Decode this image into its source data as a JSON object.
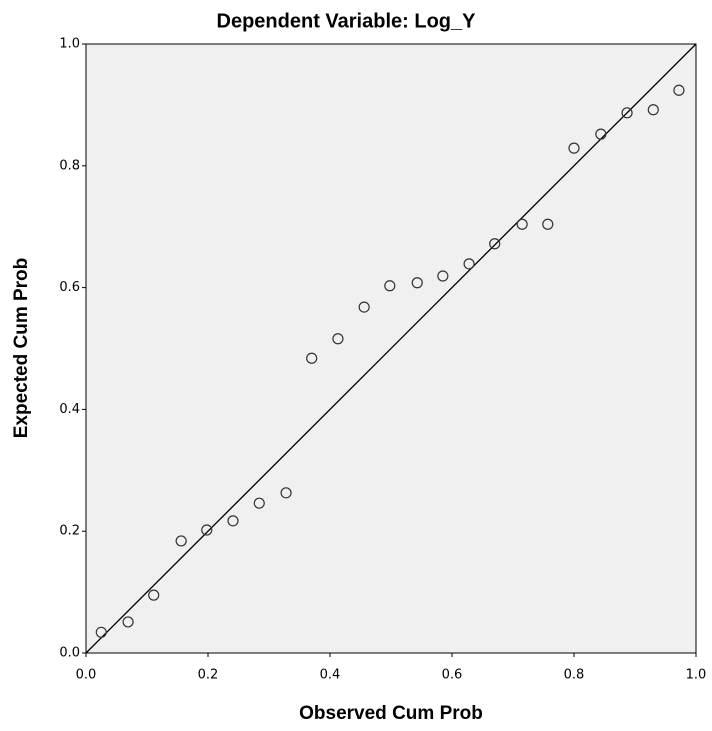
{
  "chart_data": {
    "type": "scatter",
    "title": "Dependent Variable: Log_Y",
    "x_label": "Observed Cum Prob",
    "y_label": "Expected Cum Prob",
    "x": [
      0.025,
      0.069,
      0.111,
      0.156,
      0.198,
      0.241,
      0.284,
      0.328,
      0.37,
      0.413,
      0.456,
      0.498,
      0.543,
      0.585,
      0.628,
      0.67,
      0.715,
      0.757,
      0.8,
      0.844,
      0.887,
      0.93,
      0.972
    ],
    "values": [
      0.034,
      0.051,
      0.095,
      0.184,
      0.202,
      0.217,
      0.246,
      0.263,
      0.484,
      0.516,
      0.568,
      0.603,
      0.608,
      0.619,
      0.639,
      0.672,
      0.704,
      0.704,
      0.829,
      0.852,
      0.887,
      0.892,
      0.924
    ],
    "color": "#333333",
    "reference_line": {
      "x": [
        0,
        1
      ],
      "y": [
        0,
        1
      ]
    },
    "xlim": [
      0,
      1
    ],
    "ylim": [
      0,
      1
    ],
    "xticks": [
      {
        "value": 0,
        "label": "0.0"
      },
      0.2,
      0.4,
      0.6,
      0.8,
      {
        "value": 1,
        "label": "1.0"
      }
    ],
    "yticks": [
      {
        "value": 0,
        "label": "0.0"
      },
      0.2,
      0.4,
      0.6,
      0.8,
      {
        "value": 1,
        "label": "1.0"
      }
    ],
    "grid": false
  }
}
